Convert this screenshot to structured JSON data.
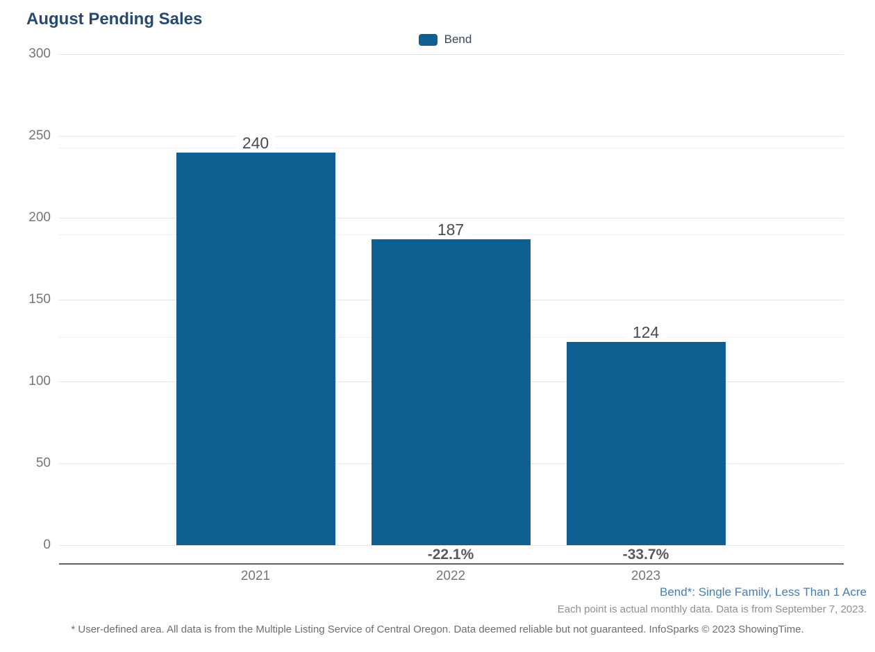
{
  "chart_data": {
    "type": "bar",
    "title": "August Pending Sales",
    "categories": [
      "2021",
      "2022",
      "2023"
    ],
    "series": [
      {
        "name": "Bend",
        "color": "#0f5f93",
        "values": [
          240,
          187,
          124
        ]
      }
    ],
    "data_labels": [
      "240",
      "187",
      "124"
    ],
    "pct_change_labels": [
      "",
      "-22.1%",
      "-33.7%"
    ],
    "xlabel": "",
    "ylabel": "",
    "ylim": [
      0,
      300
    ],
    "yticks": [
      0,
      50,
      100,
      150,
      200,
      250,
      300
    ],
    "grid": true,
    "legend_position": "top-center"
  },
  "legend": {
    "items": [
      {
        "label": "Bend",
        "color": "#0f5f93"
      }
    ]
  },
  "footnotes": {
    "series_definition": "Bend*: Single Family, Less Than 1 Acre",
    "data_note": "Each point is actual monthly data. Data is from September 7, 2023.",
    "disclaimer": "* User-defined area. All data is from the Multiple Listing Service of Central Oregon. Data deemed reliable but not guaranteed. InfoSparks © 2023 ShowingTime."
  },
  "colors": {
    "bar": "#0f5f93",
    "title": "#26496d",
    "footnote_blue": "#497dae",
    "gridline": "#e4e4e4",
    "axis_line": "#5f5f5f"
  }
}
